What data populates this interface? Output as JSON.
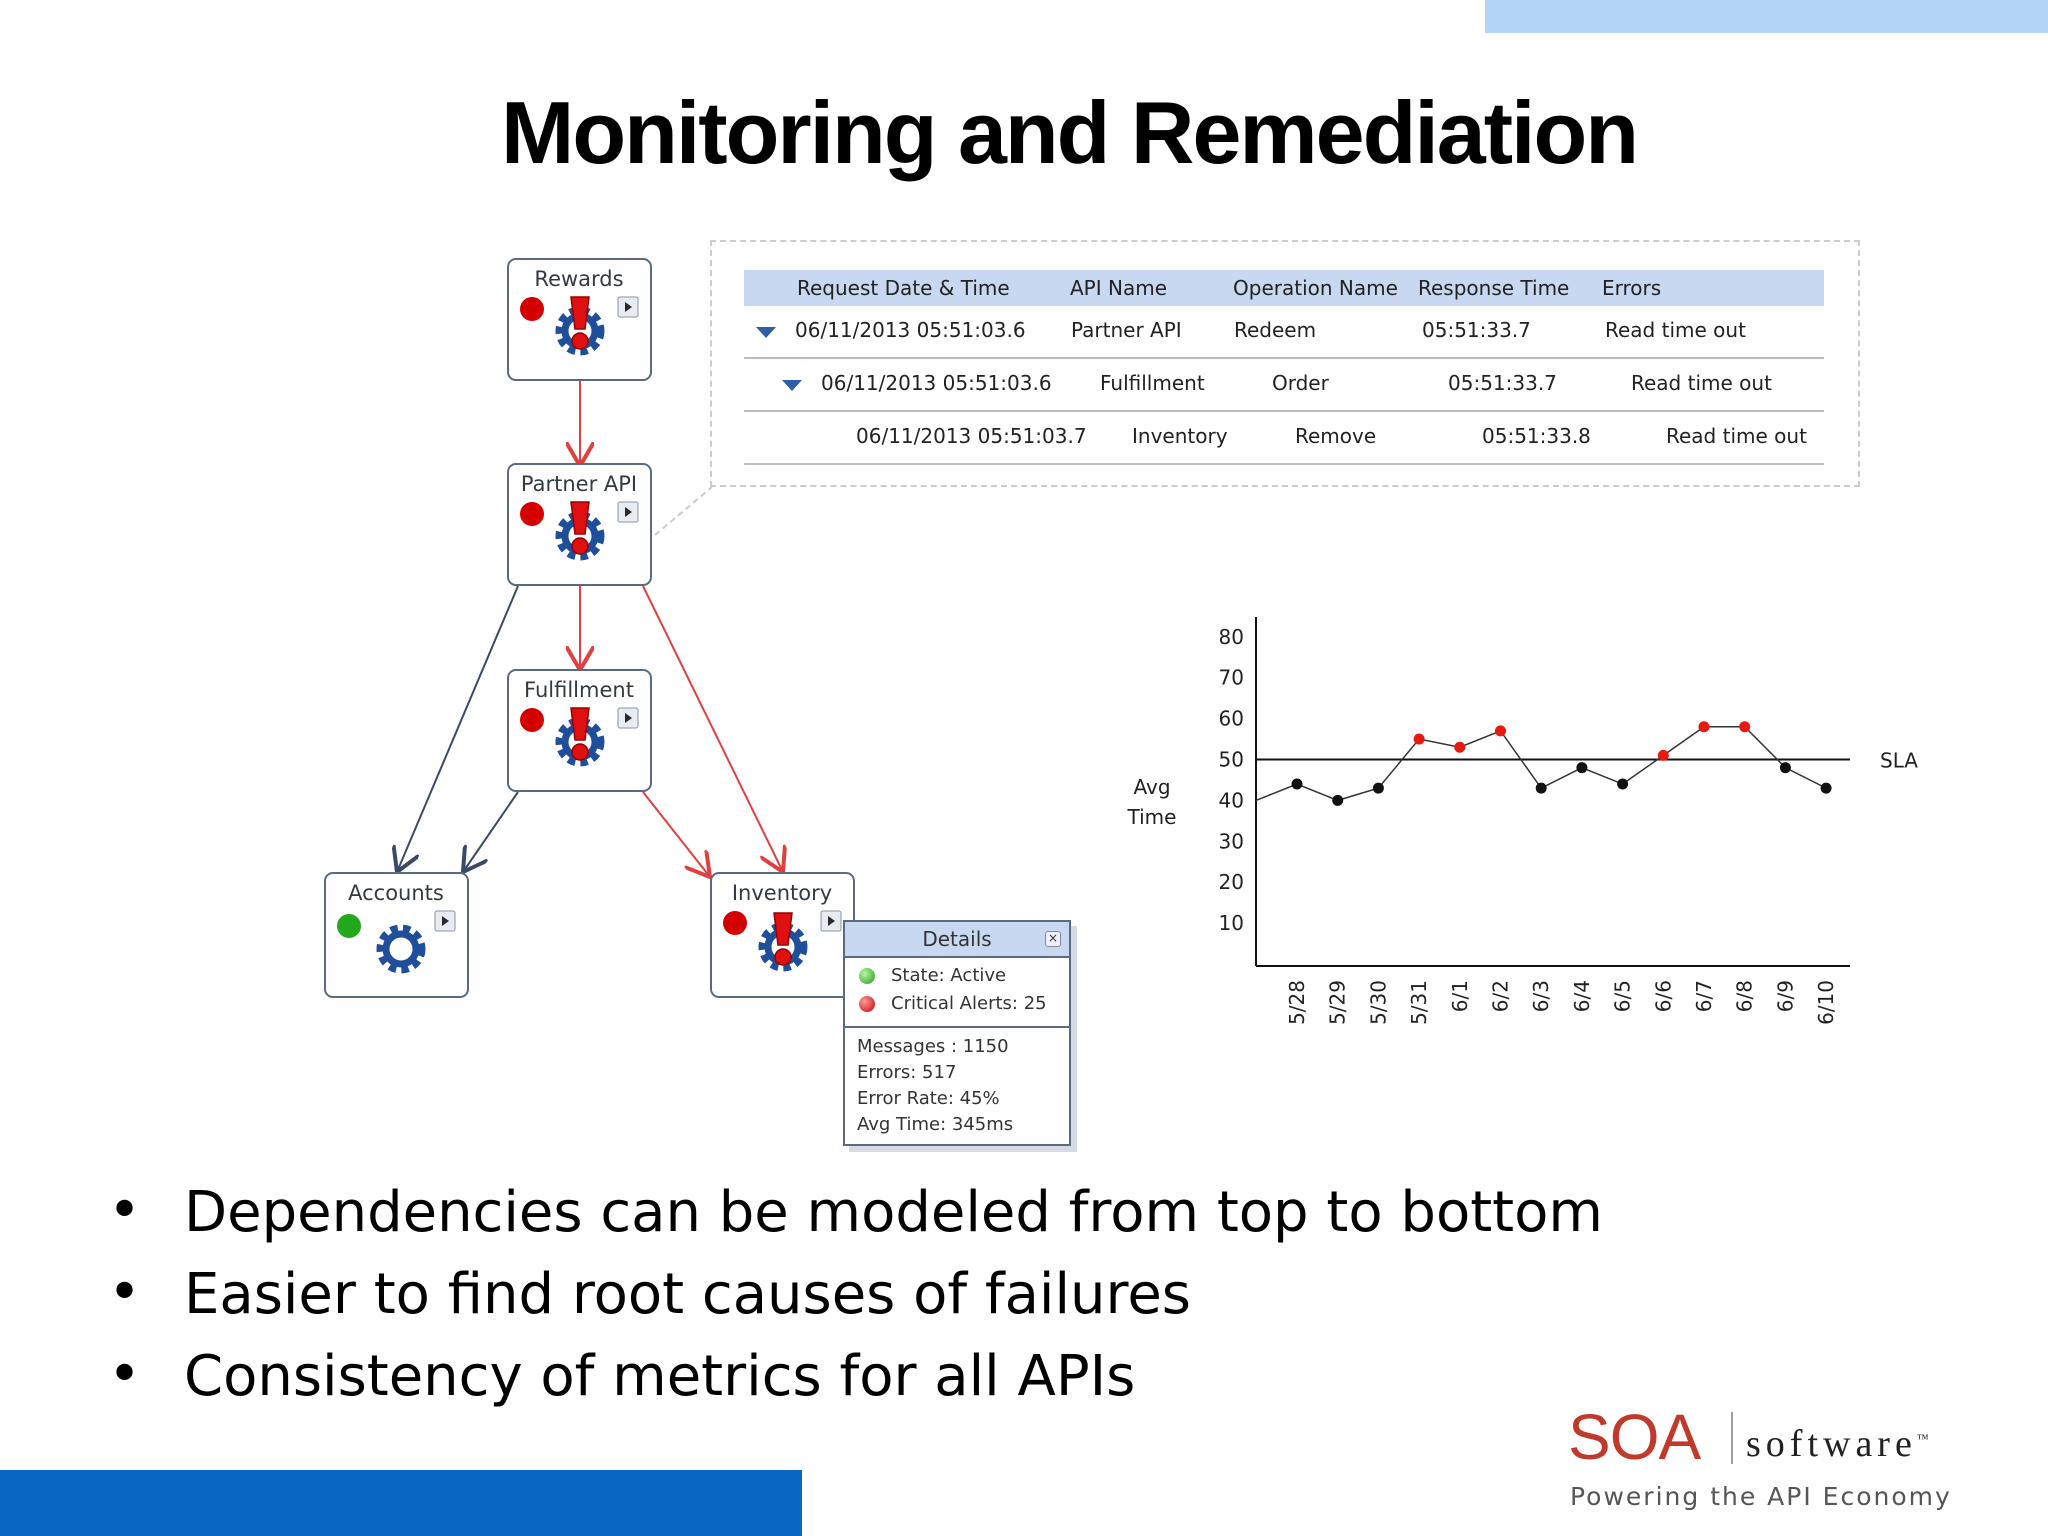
{
  "slide": {
    "title": "Monitoring and Remediation"
  },
  "nodes": [
    {
      "id": "rewards",
      "label": "Rewards",
      "status": "error"
    },
    {
      "id": "partner",
      "label": "Partner API",
      "status": "error"
    },
    {
      "id": "fulfillment",
      "label": "Fulfillment",
      "status": "error"
    },
    {
      "id": "accounts",
      "label": "Accounts",
      "status": "ok"
    },
    {
      "id": "inventory",
      "label": "Inventory",
      "status": "error"
    }
  ],
  "table": {
    "headers": [
      "Request Date & Time",
      "API Name",
      "Operation Name",
      "Response Time",
      "Errors"
    ],
    "rows": [
      [
        "06/11/2013 05:51:03.6",
        "Partner API",
        "Redeem",
        "05:51:33.7",
        "Read time out"
      ],
      [
        "06/11/2013 05:51:03.6",
        "Fulfillment",
        "Order",
        "05:51:33.7",
        "Read time out"
      ],
      [
        "06/11/2013 05:51:03.7",
        "Inventory",
        "Remove",
        "05:51:33.8",
        "Read time out"
      ]
    ]
  },
  "details": {
    "title": "Details",
    "state": "State: Active",
    "alerts": "Critical Alerts: 25",
    "messages": "Messages : 1150",
    "errors": "Errors: 517",
    "error_rate": "Error Rate: 45%",
    "avg_time": "Avg Time: 345ms"
  },
  "chart_data": {
    "type": "line",
    "categories": [
      "5/28",
      "5/29",
      "5/30",
      "5/31",
      "6/1",
      "6/2",
      "6/3",
      "6/4",
      "6/5",
      "6/6",
      "6/7",
      "6/8",
      "6/9",
      "6/10"
    ],
    "values": [
      44,
      40,
      43,
      55,
      53,
      57,
      43,
      48,
      44,
      51,
      58,
      58,
      48,
      43
    ],
    "start_value": 40,
    "threshold": 50,
    "threshold_label": "SLA",
    "ylabel": "Avg Time",
    "yticks": [
      10,
      20,
      30,
      40,
      50,
      60,
      70,
      80
    ],
    "ylim": [
      0,
      84
    ],
    "colors": {
      "above": "#e8190f",
      "below": "#111111",
      "line": "#333333"
    }
  },
  "bullets": [
    "Dependencies can be modeled from top to bottom",
    "Easier to find root causes of failures",
    "Consistency of metrics for all APIs"
  ],
  "logo": {
    "brand": "SOA",
    "word": "software",
    "tm": "™",
    "tagline": "Powering the API Economy"
  }
}
